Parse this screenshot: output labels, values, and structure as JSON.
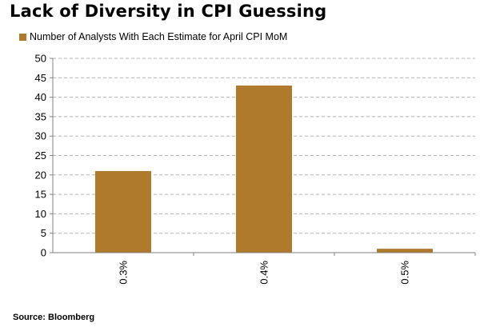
{
  "title": "Lack of Diversity in CPI Guessing",
  "source": "Source: Bloomberg",
  "colors": {
    "bar": "#b07a2c",
    "grid": "#b0b0b0",
    "axis": "#808080"
  },
  "chart_data": {
    "type": "bar",
    "categories": [
      "0.3%",
      "0.4%",
      "0.5%"
    ],
    "series": [
      {
        "name": "Number of Analysts With Each Estimate for April CPI MoM",
        "values": [
          21,
          43,
          1
        ]
      }
    ],
    "ylim": [
      0,
      50
    ],
    "yticks": [
      0,
      5,
      10,
      15,
      20,
      25,
      30,
      35,
      40,
      45,
      50
    ],
    "grid": true,
    "legend": "top-left"
  }
}
